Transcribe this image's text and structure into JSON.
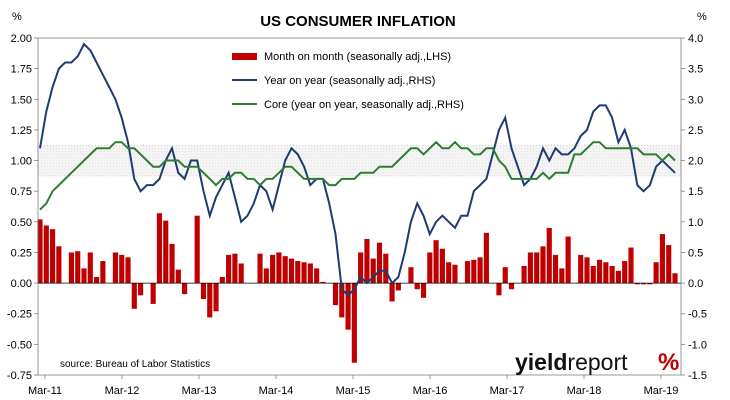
{
  "chart_data": {
    "type": "bar+line",
    "title": "US CONSUMER INFLATION",
    "left_unit": "%",
    "right_unit": "%",
    "source": "source: Bureau of Labor Statistics",
    "logo": {
      "text_a": "yield",
      "text_b": "report",
      "mark": "%",
      "colors": [
        "#2e7d32",
        "#c00000"
      ]
    },
    "left_axis": {
      "min": -0.75,
      "max": 2.0,
      "ticks": [
        "-0.75",
        "-0.50",
        "-0.25",
        "0.00",
        "0.25",
        "0.50",
        "0.75",
        "1.00",
        "1.25",
        "1.50",
        "1.75",
        "2.00"
      ]
    },
    "right_axis": {
      "min": -1.5,
      "max": 4.0,
      "ticks": [
        "-1.5",
        "-1.0",
        "-0.5",
        "0.0",
        "0.5",
        "1.0",
        "1.5",
        "2.0",
        "2.5",
        "3.0",
        "3.5",
        "4.0"
      ]
    },
    "x_ticks": [
      "Mar-11",
      "Mar-12",
      "Mar-13",
      "Mar-14",
      "Mar-15",
      "Mar-16",
      "Mar-17",
      "Mar-18",
      "Mar-19"
    ],
    "band": {
      "rhs_from": 1.75,
      "rhs_to": 2.25
    },
    "series": [
      {
        "name": "Month on month (seasonally adj.,LHS)",
        "kind": "bar",
        "axis": "left",
        "color": "#c00000",
        "values": [
          0.52,
          0.47,
          0.44,
          0.3,
          0.0,
          0.25,
          0.26,
          0.12,
          0.25,
          0.05,
          0.18,
          0.0,
          0.25,
          0.23,
          0.21,
          -0.21,
          -0.1,
          0.0,
          -0.17,
          0.57,
          0.51,
          0.32,
          0.11,
          -0.09,
          0.0,
          0.55,
          -0.13,
          -0.28,
          -0.23,
          0.05,
          0.23,
          0.24,
          0.16,
          0.0,
          0.0,
          0.24,
          0.12,
          0.23,
          0.25,
          0.22,
          0.2,
          0.18,
          0.17,
          0.16,
          0.12,
          0.01,
          0.0,
          -0.18,
          -0.28,
          -0.38,
          -0.65,
          0.25,
          0.36,
          0.2,
          0.33,
          0.24,
          -0.15,
          -0.06,
          0.0,
          0.13,
          -0.05,
          -0.12,
          0.25,
          0.35,
          0.28,
          0.17,
          0.15,
          0.0,
          0.18,
          0.19,
          0.21,
          0.41,
          0.0,
          -0.1,
          0.13,
          -0.05,
          0.0,
          0.14,
          0.25,
          0.25,
          0.3,
          0.45,
          0.23,
          0.12,
          0.38,
          0.0,
          0.23,
          0.21,
          0.14,
          0.19,
          0.17,
          0.14,
          0.1,
          0.18,
          0.29,
          -0.01,
          -0.01,
          -0.01,
          0.17,
          0.4,
          0.31,
          0.08
        ]
      },
      {
        "name": "Year on year (seasonally adj.,RHS)",
        "kind": "line",
        "axis": "right",
        "color": "#1f3b73",
        "values": [
          2.2,
          2.8,
          3.2,
          3.5,
          3.6,
          3.6,
          3.7,
          3.9,
          3.8,
          3.6,
          3.4,
          3.2,
          3.0,
          2.7,
          2.3,
          1.7,
          1.5,
          1.6,
          1.6,
          1.7,
          2.0,
          2.2,
          1.8,
          1.7,
          2.0,
          2.0,
          1.5,
          1.1,
          1.4,
          1.6,
          1.8,
          1.4,
          1.0,
          1.1,
          1.3,
          1.6,
          1.5,
          1.2,
          1.6,
          2.0,
          2.2,
          2.1,
          1.9,
          1.6,
          1.7,
          1.7,
          1.3,
          0.8,
          -0.1,
          -0.2,
          -0.1,
          0.1,
          0.0,
          0.1,
          0.2,
          0.2,
          0.0,
          0.1,
          0.5,
          1.0,
          1.3,
          1.1,
          0.8,
          1.0,
          1.1,
          1.0,
          0.9,
          1.1,
          1.1,
          1.5,
          1.6,
          1.7,
          2.1,
          2.5,
          2.7,
          2.2,
          1.9,
          1.6,
          1.7,
          1.9,
          2.2,
          2.0,
          2.2,
          2.1,
          2.1,
          2.2,
          2.4,
          2.5,
          2.8,
          2.9,
          2.9,
          2.7,
          2.3,
          2.5,
          2.2,
          1.6,
          1.5,
          1.6,
          1.9,
          2.0,
          1.9,
          1.8
        ]
      },
      {
        "name": "Core (year on year, seasonally adj.,RHS)",
        "kind": "line",
        "axis": "right",
        "color": "#2e7d32",
        "values": [
          1.2,
          1.3,
          1.5,
          1.6,
          1.7,
          1.8,
          1.9,
          2.0,
          2.1,
          2.2,
          2.2,
          2.2,
          2.3,
          2.3,
          2.2,
          2.2,
          2.1,
          2.0,
          1.9,
          1.9,
          2.0,
          2.0,
          2.0,
          1.9,
          1.9,
          1.9,
          1.8,
          1.7,
          1.6,
          1.7,
          1.7,
          1.8,
          1.8,
          1.7,
          1.7,
          1.6,
          1.7,
          1.7,
          1.8,
          1.9,
          1.9,
          1.8,
          1.7,
          1.7,
          1.7,
          1.7,
          1.6,
          1.6,
          1.7,
          1.7,
          1.7,
          1.8,
          1.8,
          1.8,
          1.9,
          1.9,
          1.9,
          2.0,
          2.1,
          2.2,
          2.2,
          2.1,
          2.2,
          2.3,
          2.2,
          2.2,
          2.3,
          2.2,
          2.2,
          2.1,
          2.1,
          2.2,
          2.2,
          2.0,
          1.9,
          1.7,
          1.7,
          1.7,
          1.7,
          1.7,
          1.8,
          1.7,
          1.8,
          1.8,
          1.8,
          2.1,
          2.1,
          2.2,
          2.3,
          2.3,
          2.2,
          2.2,
          2.2,
          2.2,
          2.2,
          2.2,
          2.1,
          2.1,
          2.1,
          2.0,
          2.1,
          2.0
        ]
      }
    ]
  }
}
